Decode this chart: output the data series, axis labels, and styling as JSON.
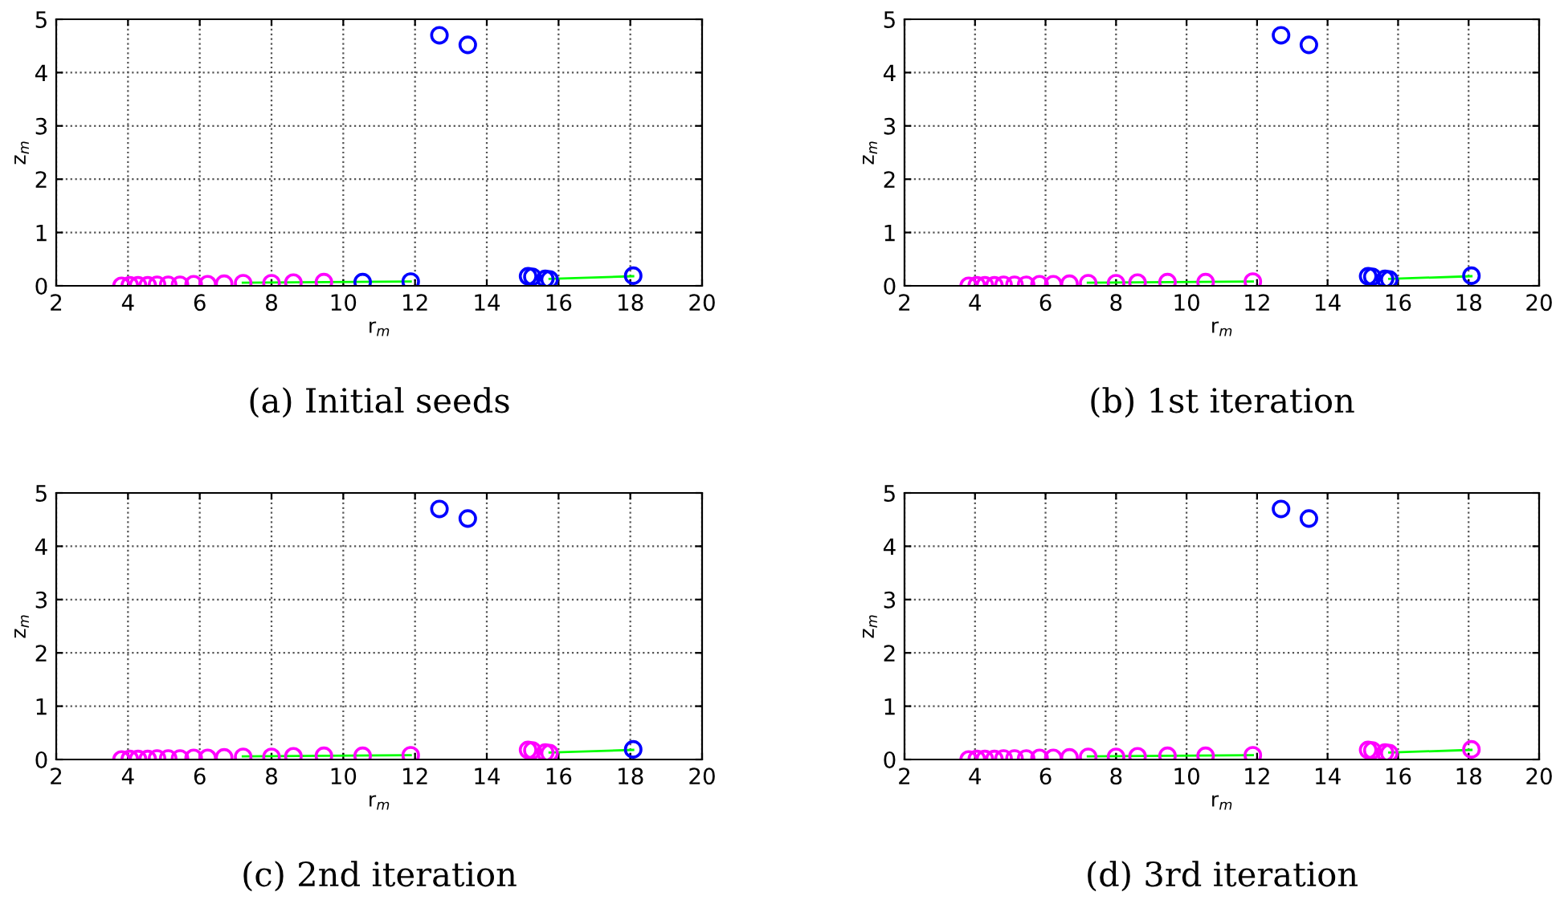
{
  "chart_data": [
    {
      "type": "scatter",
      "xlabel": "r$_{m}$",
      "ylabel": "z$_{m}$",
      "xlim": [
        2,
        20
      ],
      "ylim": [
        0,
        5
      ],
      "xticks": [
        2,
        4,
        6,
        8,
        10,
        12,
        14,
        16,
        18,
        20
      ],
      "yticks": [
        0,
        1,
        2,
        3,
        4,
        5
      ],
      "grid": true,
      "marker": "circle",
      "annotations": [
        "(a) Initial seeds"
      ],
      "series": [
        {
          "type": "line",
          "color": "#00ff00",
          "marker": "none",
          "x": [
            7.2,
            11.88,
            13.8,
            15.75,
            18.08
          ],
          "values": [
            0.06,
            0.08,
            null,
            0.13,
            0.18
          ]
        },
        {
          "color": "#ff00ff",
          "x": [
            3.82,
            4.05,
            4.28,
            4.55,
            4.81,
            5.12,
            5.45,
            5.83,
            6.22,
            6.68,
            7.21,
            8.0,
            8.61,
            9.46
          ],
          "values": [
            0.0,
            0.01,
            0.01,
            0.01,
            0.02,
            0.02,
            0.02,
            0.03,
            0.03,
            0.04,
            0.05,
            0.05,
            0.06,
            0.07
          ]
        },
        {
          "color": "#0000ff",
          "x": [
            10.54,
            11.88,
            12.68,
            13.47,
            15.15,
            15.27,
            15.63,
            15.75,
            18.08
          ],
          "values": [
            0.07,
            0.08,
            4.7,
            4.52,
            0.18,
            0.17,
            0.13,
            0.12,
            0.19
          ]
        }
      ]
    },
    {
      "type": "scatter",
      "xlabel": "r$_{m}$",
      "ylabel": "z$_{m}$",
      "xlim": [
        2,
        20
      ],
      "ylim": [
        0,
        5
      ],
      "xticks": [
        2,
        4,
        6,
        8,
        10,
        12,
        14,
        16,
        18,
        20
      ],
      "yticks": [
        0,
        1,
        2,
        3,
        4,
        5
      ],
      "grid": true,
      "marker": "circle",
      "annotations": [
        "(b) 1st iteration"
      ],
      "series": [
        {
          "type": "line",
          "color": "#00ff00",
          "marker": "none",
          "x": [
            7.2,
            11.88,
            13.8,
            15.75,
            18.08
          ],
          "values": [
            0.06,
            0.08,
            null,
            0.13,
            0.18
          ]
        },
        {
          "color": "#ff00ff",
          "x": [
            3.82,
            4.05,
            4.28,
            4.55,
            4.81,
            5.12,
            5.45,
            5.83,
            6.22,
            6.68,
            7.21,
            8.0,
            8.61,
            9.46,
            10.54,
            11.88
          ],
          "values": [
            0.0,
            0.01,
            0.01,
            0.01,
            0.02,
            0.02,
            0.02,
            0.03,
            0.03,
            0.04,
            0.05,
            0.05,
            0.06,
            0.07,
            0.07,
            0.08
          ]
        },
        {
          "color": "#0000ff",
          "x": [
            12.68,
            13.47,
            15.15,
            15.27,
            15.63,
            15.75,
            18.08
          ],
          "values": [
            4.7,
            4.52,
            0.18,
            0.17,
            0.13,
            0.12,
            0.19
          ]
        }
      ]
    },
    {
      "type": "scatter",
      "xlabel": "r$_{m}$",
      "ylabel": "z$_{m}$",
      "xlim": [
        2,
        20
      ],
      "ylim": [
        0,
        5
      ],
      "xticks": [
        2,
        4,
        6,
        8,
        10,
        12,
        14,
        16,
        18,
        20
      ],
      "yticks": [
        0,
        1,
        2,
        3,
        4,
        5
      ],
      "grid": true,
      "marker": "circle",
      "annotations": [
        "(c) 2nd iteration"
      ],
      "series": [
        {
          "type": "line",
          "color": "#00ff00",
          "marker": "none",
          "x": [
            7.2,
            11.88,
            13.8,
            15.75,
            18.08
          ],
          "values": [
            0.06,
            0.08,
            null,
            0.13,
            0.18
          ]
        },
        {
          "color": "#ff00ff",
          "x": [
            3.82,
            4.05,
            4.28,
            4.55,
            4.81,
            5.12,
            5.45,
            5.83,
            6.22,
            6.68,
            7.21,
            8.0,
            8.61,
            9.46,
            10.54,
            11.88,
            15.15,
            15.27,
            15.63,
            15.75
          ],
          "values": [
            0.0,
            0.01,
            0.01,
            0.01,
            0.02,
            0.02,
            0.02,
            0.03,
            0.03,
            0.04,
            0.05,
            0.05,
            0.06,
            0.07,
            0.07,
            0.08,
            0.18,
            0.17,
            0.13,
            0.12
          ]
        },
        {
          "color": "#0000ff",
          "x": [
            12.68,
            13.47,
            18.08
          ],
          "values": [
            4.7,
            4.52,
            0.19
          ]
        }
      ]
    },
    {
      "type": "scatter",
      "xlabel": "r$_{m}$",
      "ylabel": "z$_{m}$",
      "xlim": [
        2,
        20
      ],
      "ylim": [
        0,
        5
      ],
      "xticks": [
        2,
        4,
        6,
        8,
        10,
        12,
        14,
        16,
        18,
        20
      ],
      "yticks": [
        0,
        1,
        2,
        3,
        4,
        5
      ],
      "grid": true,
      "marker": "circle",
      "annotations": [
        "(d) 3rd iteration"
      ],
      "series": [
        {
          "type": "line",
          "color": "#00ff00",
          "marker": "none",
          "x": [
            7.2,
            11.88,
            13.8,
            15.75,
            18.08
          ],
          "values": [
            0.06,
            0.08,
            null,
            0.13,
            0.18
          ]
        },
        {
          "color": "#ff00ff",
          "x": [
            3.82,
            4.05,
            4.28,
            4.55,
            4.81,
            5.12,
            5.45,
            5.83,
            6.22,
            6.68,
            7.21,
            8.0,
            8.61,
            9.46,
            10.54,
            11.88,
            15.15,
            15.27,
            15.63,
            15.75,
            18.08
          ],
          "values": [
            0.0,
            0.01,
            0.01,
            0.01,
            0.02,
            0.02,
            0.02,
            0.03,
            0.03,
            0.04,
            0.05,
            0.05,
            0.06,
            0.07,
            0.07,
            0.08,
            0.18,
            0.17,
            0.13,
            0.12,
            0.19
          ]
        },
        {
          "color": "#0000ff",
          "x": [
            12.68,
            13.47
          ],
          "values": [
            4.7,
            4.52
          ]
        }
      ]
    }
  ]
}
